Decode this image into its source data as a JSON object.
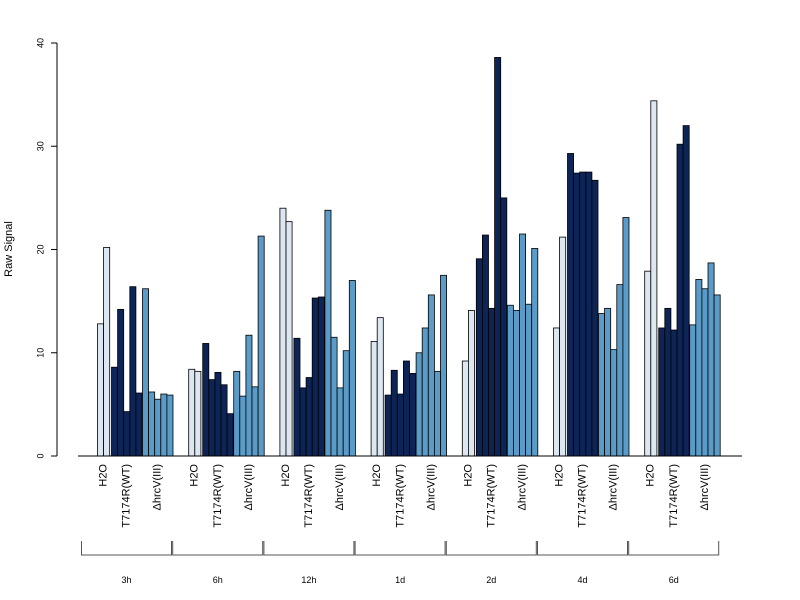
{
  "chart_data": {
    "type": "bar",
    "ylabel": "Raw Signal",
    "ylim": [
      0,
      40
    ],
    "yticks": [
      0,
      10,
      20,
      30,
      40
    ],
    "timepoints": [
      "3h",
      "6h",
      "12h",
      "1d",
      "2d",
      "4d",
      "6d"
    ],
    "treatments": [
      "H2O",
      "T7174R(WT)",
      "ΔhrcV(III)"
    ],
    "colors": {
      "H2O": "#dde7f2",
      "T7174R(WT)": "#0c2456",
      "ΔhrcV(III)": "#5b9bc8"
    },
    "values": {
      "3h": {
        "H2O": [
          12.8,
          20.2
        ],
        "T7174R(WT)": [
          8.6,
          14.2,
          4.3,
          16.4,
          6.1
        ],
        "ΔhrcV(III)": [
          16.2,
          6.2,
          5.5,
          6.0,
          5.9
        ]
      },
      "6h": {
        "H2O": [
          8.4,
          8.2
        ],
        "T7174R(WT)": [
          10.9,
          7.4,
          8.1,
          6.9,
          4.1
        ],
        "ΔhrcV(III)": [
          8.2,
          5.8,
          11.7,
          6.7,
          21.3
        ]
      },
      "12h": {
        "H2O": [
          24.0,
          22.7
        ],
        "T7174R(WT)": [
          11.4,
          6.6,
          7.6,
          15.3,
          15.4
        ],
        "ΔhrcV(III)": [
          23.8,
          11.5,
          6.6,
          10.2,
          17.0
        ]
      },
      "1d": {
        "H2O": [
          11.1,
          13.4
        ],
        "T7174R(WT)": [
          5.9,
          8.3,
          6.0,
          9.2,
          8.0
        ],
        "ΔhrcV(III)": [
          10.0,
          12.4,
          15.6,
          8.2,
          17.5
        ]
      },
      "2d": {
        "H2O": [
          9.2,
          14.1
        ],
        "T7174R(WT)": [
          19.1,
          21.4,
          14.3,
          38.6,
          25.0
        ],
        "ΔhrcV(III)": [
          14.6,
          14.1,
          21.5,
          14.7,
          20.1
        ]
      },
      "4d": {
        "H2O": [
          12.4,
          21.2
        ],
        "T7174R(WT)": [
          29.3,
          27.4,
          27.5,
          27.5,
          26.7
        ],
        "ΔhrcV(III)": [
          13.8,
          14.3,
          10.3,
          16.6,
          23.1
        ]
      },
      "6d": {
        "H2O": [
          17.9,
          34.4
        ],
        "T7174R(WT)": [
          12.4,
          14.3,
          12.2,
          30.2,
          32.0
        ],
        "ΔhrcV(III)": [
          12.7,
          17.1,
          16.2,
          18.7,
          15.6
        ]
      }
    }
  }
}
